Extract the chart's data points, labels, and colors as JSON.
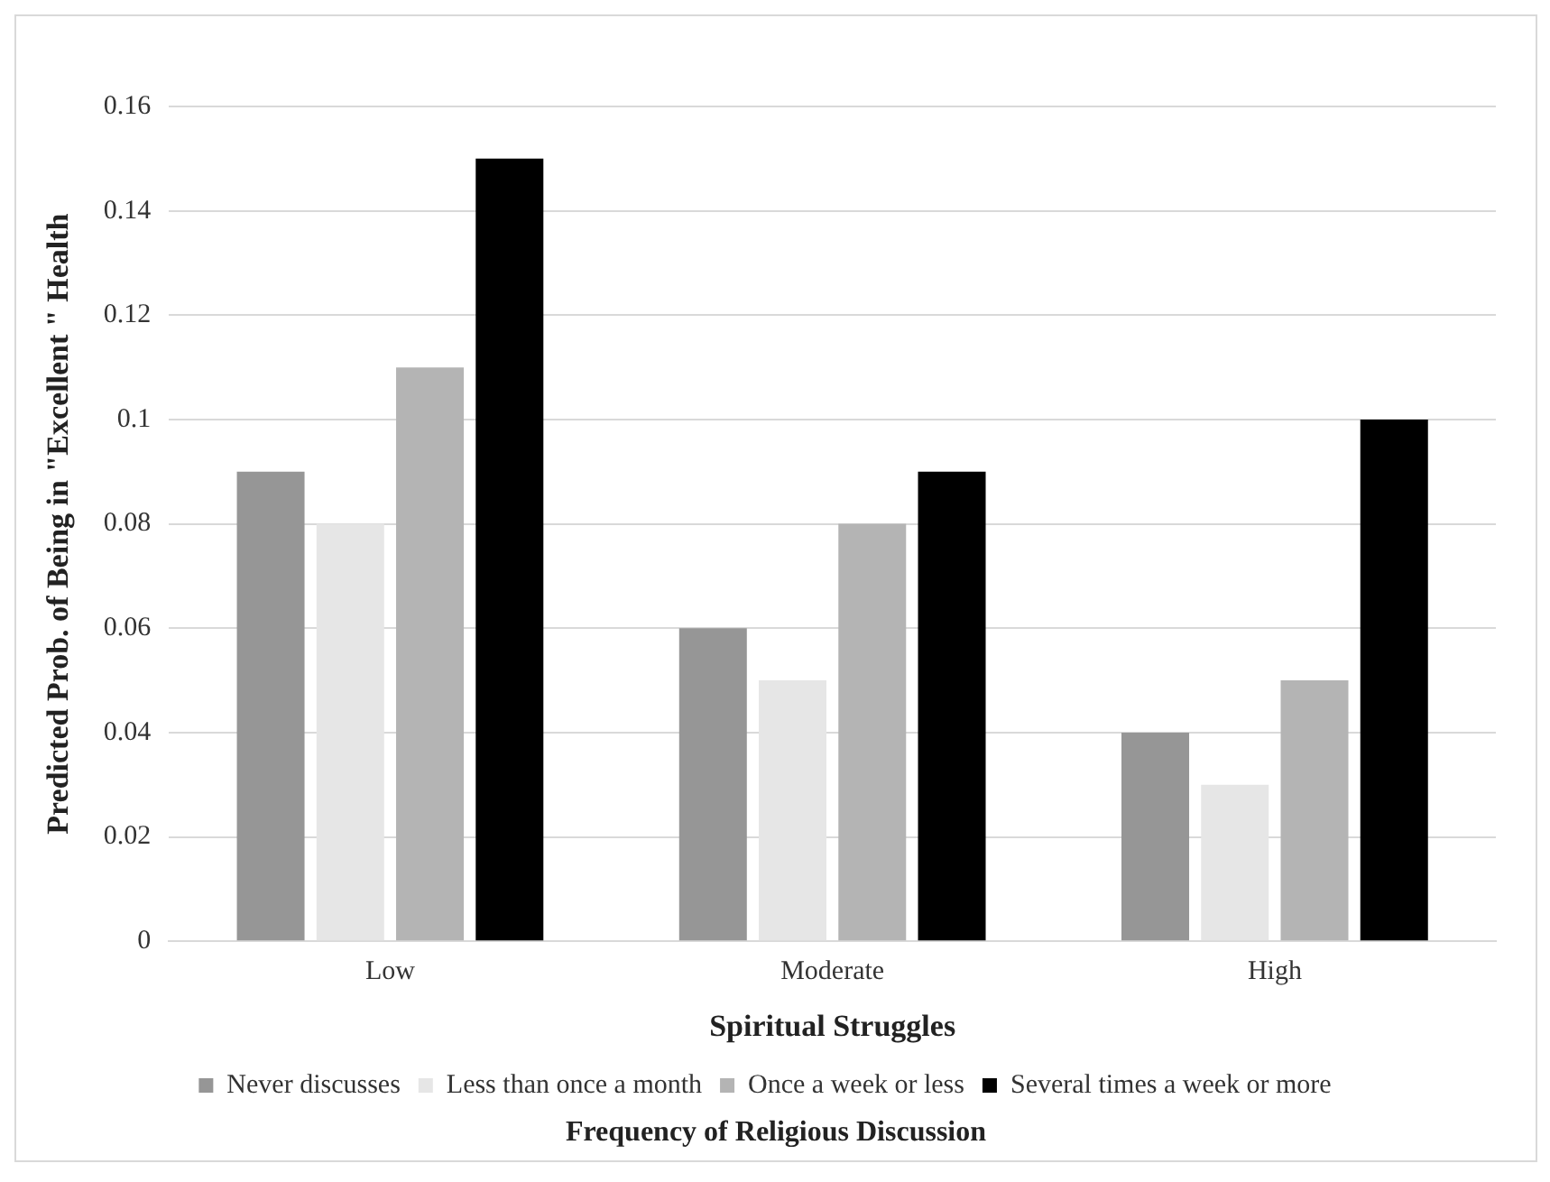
{
  "chart_data": {
    "type": "bar",
    "ylabel": "Predicted Prob. of Being in \"Excellent \" Health",
    "xlabel": "Spiritual Struggles",
    "legend_title": "Frequency of Religious Discussion",
    "categories": [
      "Low",
      "Moderate",
      "High"
    ],
    "series": [
      {
        "name": "Never discusses",
        "color": "#969696",
        "values": [
          0.09,
          0.06,
          0.04
        ]
      },
      {
        "name": "Less than once a month",
        "color": "#e6e6e6",
        "values": [
          0.08,
          0.05,
          0.03
        ]
      },
      {
        "name": "Once a week or less",
        "color": "#b4b4b4",
        "values": [
          0.11,
          0.08,
          0.05
        ]
      },
      {
        "name": "Several times a week or more",
        "color": "#000000",
        "values": [
          0.15,
          0.09,
          0.1
        ]
      }
    ],
    "ylim": [
      0,
      0.16
    ],
    "yticks": [
      0,
      0.02,
      0.04,
      0.06,
      0.08,
      0.1,
      0.12,
      0.14,
      0.16
    ],
    "grid": "y",
    "legend": "bottom"
  }
}
